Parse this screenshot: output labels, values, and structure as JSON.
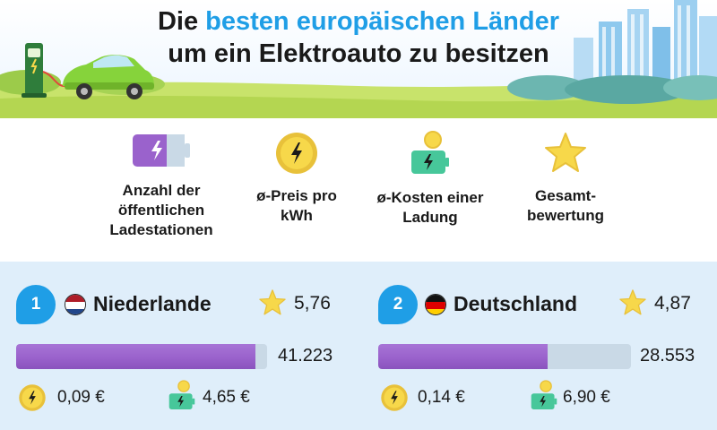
{
  "title": {
    "part1": "Die ",
    "accent": "besten europäischen Länder",
    "line2": "um ein Elektroauto zu besitzen"
  },
  "legend": [
    {
      "icon": "battery-icon",
      "label": "Anzahl der\nöffentlichen\nLadestationen"
    },
    {
      "icon": "coin-lightning-icon",
      "label": "ø-Preis pro\nkWh"
    },
    {
      "icon": "battery-coin-icon",
      "label": "ø-Kosten einer\nLadung"
    },
    {
      "icon": "star-icon",
      "label": "Gesamt-\nbewertung"
    }
  ],
  "countries": [
    {
      "rank": "1",
      "flag": "netherlands-flag",
      "name": "Niederlande",
      "rating": "5,76",
      "stations": "41.223",
      "stations_fill": 0.955,
      "price_kwh": "0,09 €",
      "charge_cost": "4,65 €"
    },
    {
      "rank": "2",
      "flag": "germany-flag",
      "name": "Deutschland",
      "rating": "4,87",
      "stations": "28.553",
      "stations_fill": 0.67,
      "price_kwh": "0,14 €",
      "charge_cost": "6,90 €"
    }
  ],
  "colors": {
    "accent_blue": "#1f9ee6",
    "bar_purple": "#9a62cc",
    "card_background": "#dfeefa",
    "coin_yellow": "#f7d84a",
    "battery_green": "#47c79a"
  }
}
